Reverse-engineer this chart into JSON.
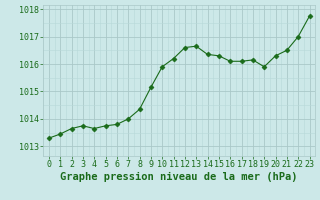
{
  "x": [
    0,
    1,
    2,
    3,
    4,
    5,
    6,
    7,
    8,
    9,
    10,
    11,
    12,
    13,
    14,
    15,
    16,
    17,
    18,
    19,
    20,
    21,
    22,
    23
  ],
  "y": [
    1013.3,
    1013.45,
    1013.65,
    1013.75,
    1013.65,
    1013.75,
    1013.8,
    1014.0,
    1014.35,
    1015.15,
    1015.9,
    1016.2,
    1016.6,
    1016.65,
    1016.35,
    1016.3,
    1016.1,
    1016.1,
    1016.15,
    1015.9,
    1016.3,
    1016.5,
    1017.0,
    1017.75
  ],
  "line_color": "#1a6b1a",
  "marker": "D",
  "marker_size": 2.5,
  "bg_color": "#cce8e8",
  "grid_color_major": "#aac8c8",
  "grid_color_minor": "#b8d8d8",
  "xlabel": "Graphe pression niveau de la mer (hPa)",
  "xlabel_fontsize": 7.5,
  "xlabel_color": "#1a6b1a",
  "yticks": [
    1013,
    1014,
    1015,
    1016,
    1017,
    1018
  ],
  "ylim": [
    1012.65,
    1018.15
  ],
  "xlim": [
    -0.5,
    23.5
  ],
  "xticks": [
    0,
    1,
    2,
    3,
    4,
    5,
    6,
    7,
    8,
    9,
    10,
    11,
    12,
    13,
    14,
    15,
    16,
    17,
    18,
    19,
    20,
    21,
    22,
    23
  ],
  "tick_fontsize": 6,
  "tick_color": "#1a6b1a",
  "figsize": [
    3.2,
    2.0
  ],
  "dpi": 100
}
